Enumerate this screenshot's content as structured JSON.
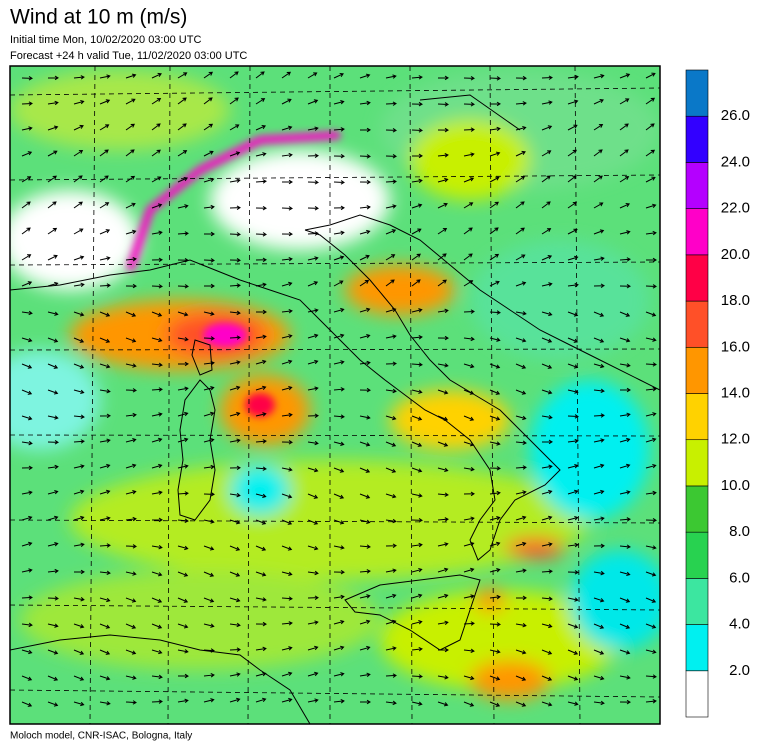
{
  "header": {
    "title": "Wind at 10 m (m/s)",
    "initial_time": "Initial time  Mon, 10/02/2020 03:00 UTC",
    "forecast": "Forecast +24 h valid  Tue, 11/02/2020 03:00 UTC"
  },
  "colorbar": {
    "labels": [
      "2.0",
      "4.0",
      "6.0",
      "8.0",
      "10.0",
      "12.0",
      "14.0",
      "16.0",
      "18.0",
      "20.0",
      "22.0",
      "24.0",
      "26.0"
    ],
    "colors": [
      "#ffffff",
      "#00f0f0",
      "#3ce6a0",
      "#28d250",
      "#3cc832",
      "#c8f000",
      "#ffd200",
      "#ff9600",
      "#ff5028",
      "#ff0046",
      "#ff00c8",
      "#b400ff",
      "#3200ff",
      "#0a78c8"
    ]
  },
  "footer": "Moloch model, CNR-ISAC, Bologna, Italy"
}
